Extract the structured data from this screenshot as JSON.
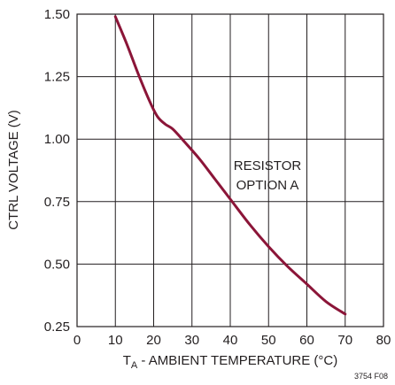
{
  "chart_data": {
    "type": "line",
    "title": "",
    "xlabel_main": "T",
    "xlabel_sub": "A",
    "xlabel_rest": " - AMBIENT TEMPERATURE (°C)",
    "ylabel": "CTRL VOLTAGE (V)",
    "xlim": [
      0,
      80
    ],
    "ylim": [
      0.25,
      1.5
    ],
    "x_ticks": [
      "0",
      "10",
      "20",
      "30",
      "40",
      "50",
      "60",
      "70",
      "80"
    ],
    "y_ticks": [
      "1.50",
      "1.25",
      "1.00",
      "0.75",
      "0.50",
      "0.25"
    ],
    "grid": true,
    "series": [
      {
        "color": "#8b1538",
        "x": [
          10,
          13,
          16,
          19,
          21,
          23,
          25,
          28,
          32,
          36,
          40,
          45,
          50,
          55,
          60,
          65,
          70
        ],
        "y": [
          1.49,
          1.38,
          1.26,
          1.15,
          1.09,
          1.06,
          1.04,
          0.99,
          0.92,
          0.84,
          0.76,
          0.66,
          0.57,
          0.49,
          0.42,
          0.35,
          0.3
        ]
      }
    ],
    "annotation_line1": "RESISTOR",
    "annotation_line2": "OPTION A",
    "figure_id": "3754 F08"
  }
}
